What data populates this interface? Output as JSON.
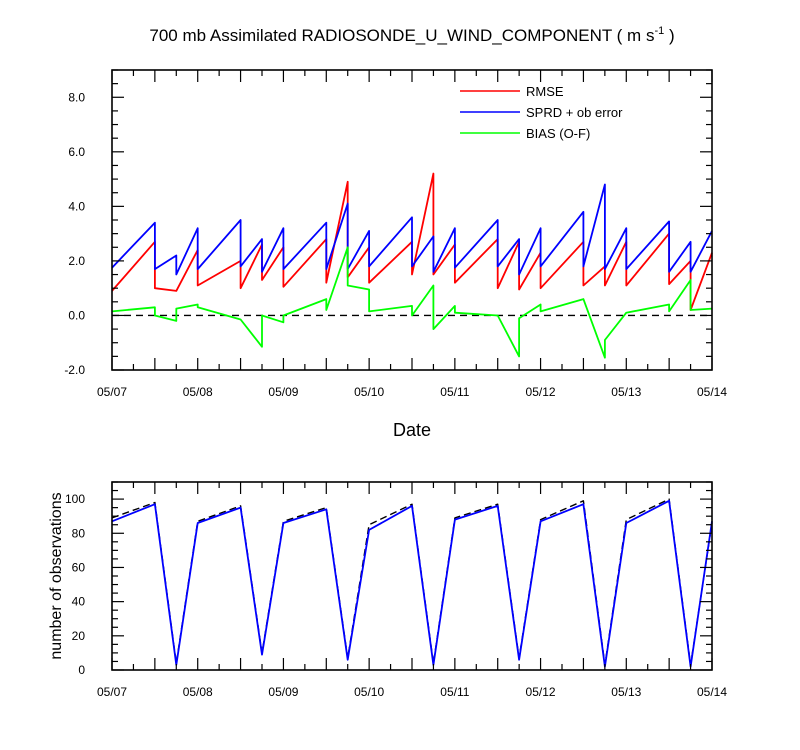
{
  "title_main": "700 mb Assimilated RADIOSONDE_U_WIND_COMPONENT ( m s",
  "title_sup": "-1",
  "title_end": " )",
  "chart_data": [
    {
      "type": "line",
      "xlabel": "Date",
      "ylabel": "",
      "x_range": [
        0,
        7
      ],
      "ylim": [
        -2,
        9
      ],
      "x_ticks": [
        0,
        1,
        2,
        3,
        4,
        5,
        6,
        7
      ],
      "x_tick_labels": [
        "05/07",
        "05/08",
        "05/09",
        "05/10",
        "05/11",
        "05/12",
        "05/13",
        "05/14"
      ],
      "y_ticks": [
        -2,
        0,
        2,
        4,
        6,
        8
      ],
      "y_tick_labels": [
        "-2.0",
        "0.0",
        "2.0",
        "4.0",
        "6.0",
        "8.0"
      ],
      "legend_position": "top-right",
      "reference_line": {
        "y": 0,
        "style": "dashed",
        "color": "#000000"
      },
      "series": [
        {
          "name": "RMSE",
          "color": "#ff0000",
          "points": [
            [
              0.0,
              0.9
            ],
            [
              0.5,
              2.7
            ],
            [
              0.5,
              1.0
            ],
            [
              0.75,
              0.9
            ],
            [
              1.0,
              2.4
            ],
            [
              1.0,
              1.1
            ],
            [
              1.5,
              2.0
            ],
            [
              1.5,
              1.0
            ],
            [
              1.75,
              2.6
            ],
            [
              1.75,
              1.3
            ],
            [
              2.0,
              2.5
            ],
            [
              2.0,
              1.05
            ],
            [
              2.5,
              2.8
            ],
            [
              2.5,
              1.2
            ],
            [
              2.75,
              4.9
            ],
            [
              2.75,
              1.4
            ],
            [
              3.0,
              2.5
            ],
            [
              3.0,
              1.2
            ],
            [
              3.5,
              2.7
            ],
            [
              3.5,
              1.5
            ],
            [
              3.75,
              5.2
            ],
            [
              3.75,
              1.5
            ],
            [
              4.0,
              2.6
            ],
            [
              4.0,
              1.2
            ],
            [
              4.5,
              2.8
            ],
            [
              4.5,
              1.0
            ],
            [
              4.75,
              2.7
            ],
            [
              4.75,
              0.95
            ],
            [
              5.0,
              2.3
            ],
            [
              5.0,
              1.0
            ],
            [
              5.5,
              2.7
            ],
            [
              5.5,
              1.1
            ],
            [
              5.75,
              1.8
            ],
            [
              5.75,
              1.1
            ],
            [
              6.0,
              2.7
            ],
            [
              6.0,
              1.1
            ],
            [
              6.5,
              3.0
            ],
            [
              6.5,
              1.15
            ],
            [
              6.75,
              2.0
            ],
            [
              6.75,
              0.2
            ],
            [
              7.0,
              2.3
            ]
          ]
        },
        {
          "name": "SPRD + ob error",
          "color": "#0000ff",
          "points": [
            [
              0.0,
              1.75
            ],
            [
              0.5,
              3.4
            ],
            [
              0.5,
              1.7
            ],
            [
              0.75,
              2.2
            ],
            [
              0.75,
              1.5
            ],
            [
              1.0,
              3.2
            ],
            [
              1.0,
              1.7
            ],
            [
              1.5,
              3.5
            ],
            [
              1.5,
              1.8
            ],
            [
              1.75,
              2.8
            ],
            [
              1.75,
              1.6
            ],
            [
              2.0,
              3.2
            ],
            [
              2.0,
              1.7
            ],
            [
              2.5,
              3.4
            ],
            [
              2.5,
              1.7
            ],
            [
              2.75,
              4.1
            ],
            [
              2.75,
              1.7
            ],
            [
              3.0,
              3.1
            ],
            [
              3.0,
              1.8
            ],
            [
              3.5,
              3.6
            ],
            [
              3.5,
              1.8
            ],
            [
              3.75,
              2.9
            ],
            [
              3.75,
              1.6
            ],
            [
              4.0,
              3.2
            ],
            [
              4.0,
              1.75
            ],
            [
              4.5,
              3.5
            ],
            [
              4.5,
              1.8
            ],
            [
              4.75,
              2.8
            ],
            [
              4.75,
              1.5
            ],
            [
              5.0,
              3.2
            ],
            [
              5.0,
              1.8
            ],
            [
              5.5,
              3.8
            ],
            [
              5.5,
              1.8
            ],
            [
              5.75,
              4.8
            ],
            [
              5.75,
              1.7
            ],
            [
              6.0,
              3.2
            ],
            [
              6.0,
              1.7
            ],
            [
              6.5,
              3.45
            ],
            [
              6.5,
              1.6
            ],
            [
              6.75,
              2.7
            ],
            [
              6.75,
              1.6
            ],
            [
              7.0,
              3.1
            ]
          ]
        },
        {
          "name": "BIAS (O-F)",
          "color": "#00ff00",
          "points": [
            [
              0.0,
              0.15
            ],
            [
              0.5,
              0.3
            ],
            [
              0.5,
              0.0
            ],
            [
              0.75,
              -0.2
            ],
            [
              0.75,
              0.25
            ],
            [
              1.0,
              0.4
            ],
            [
              1.0,
              0.3
            ],
            [
              1.5,
              -0.15
            ],
            [
              1.75,
              -1.15
            ],
            [
              1.75,
              0.0
            ],
            [
              2.0,
              -0.25
            ],
            [
              2.0,
              0.0
            ],
            [
              2.5,
              0.6
            ],
            [
              2.5,
              0.2
            ],
            [
              2.75,
              2.5
            ],
            [
              2.75,
              1.1
            ],
            [
              3.0,
              0.95
            ],
            [
              3.0,
              0.15
            ],
            [
              3.5,
              0.35
            ],
            [
              3.5,
              0.0
            ],
            [
              3.75,
              1.1
            ],
            [
              3.75,
              -0.5
            ],
            [
              4.0,
              0.35
            ],
            [
              4.0,
              0.1
            ],
            [
              4.5,
              0.0
            ],
            [
              4.75,
              -1.5
            ],
            [
              4.75,
              -0.1
            ],
            [
              5.0,
              0.4
            ],
            [
              5.0,
              0.15
            ],
            [
              5.5,
              0.6
            ],
            [
              5.75,
              -1.55
            ],
            [
              5.75,
              -0.9
            ],
            [
              6.0,
              0.1
            ],
            [
              6.5,
              0.4
            ],
            [
              6.5,
              0.15
            ],
            [
              6.75,
              1.3
            ],
            [
              6.75,
              0.2
            ],
            [
              7.0,
              0.25
            ]
          ]
        }
      ]
    },
    {
      "type": "line",
      "xlabel": "",
      "ylabel": "number of observations",
      "x_range": [
        0,
        7
      ],
      "ylim": [
        0,
        110
      ],
      "x_ticks": [
        0,
        1,
        2,
        3,
        4,
        5,
        6,
        7
      ],
      "x_tick_labels": [
        "05/07",
        "05/08",
        "05/09",
        "05/10",
        "05/11",
        "05/12",
        "05/13",
        "05/14"
      ],
      "y_ticks": [
        0,
        20,
        40,
        60,
        80,
        100
      ],
      "y_tick_labels": [
        "0",
        "20",
        "40",
        "60",
        "80",
        "100"
      ],
      "series": [
        {
          "color": "#000000",
          "dashed": true,
          "points": [
            [
              0.0,
              89
            ],
            [
              0.5,
              98
            ],
            [
              0.75,
              4
            ],
            [
              1.0,
              87
            ],
            [
              1.5,
              96
            ],
            [
              1.75,
              10
            ],
            [
              2.0,
              87
            ],
            [
              2.5,
              95
            ],
            [
              2.75,
              7
            ],
            [
              3.0,
              85
            ],
            [
              3.5,
              97
            ],
            [
              3.75,
              4
            ],
            [
              4.0,
              89
            ],
            [
              4.5,
              97
            ],
            [
              4.75,
              7
            ],
            [
              5.0,
              88
            ],
            [
              5.5,
              99
            ],
            [
              5.75,
              3
            ],
            [
              6.0,
              88
            ],
            [
              6.5,
              100
            ],
            [
              6.75,
              3
            ],
            [
              7.0,
              86
            ]
          ]
        },
        {
          "color": "#0000ff",
          "points": [
            [
              0.0,
              87
            ],
            [
              0.5,
              97
            ],
            [
              0.75,
              3
            ],
            [
              1.0,
              86
            ],
            [
              1.5,
              95
            ],
            [
              1.75,
              9
            ],
            [
              2.0,
              86
            ],
            [
              2.5,
              94
            ],
            [
              2.75,
              6
            ],
            [
              3.0,
              82
            ],
            [
              3.5,
              96
            ],
            [
              3.75,
              3
            ],
            [
              4.0,
              88
            ],
            [
              4.5,
              96
            ],
            [
              4.75,
              6
            ],
            [
              5.0,
              87
            ],
            [
              5.5,
              97
            ],
            [
              5.75,
              2
            ],
            [
              6.0,
              86
            ],
            [
              6.5,
              99
            ],
            [
              6.75,
              2
            ],
            [
              7.0,
              87
            ]
          ]
        }
      ]
    }
  ]
}
